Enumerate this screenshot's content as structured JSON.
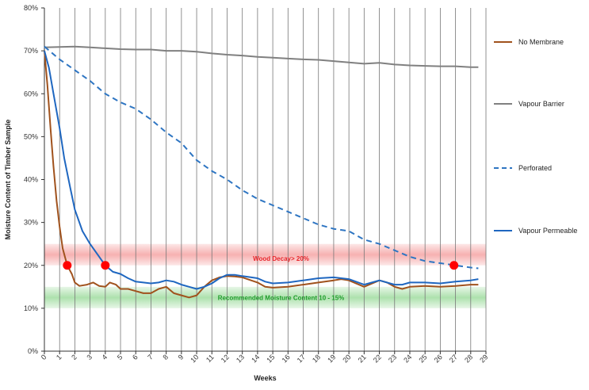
{
  "chart_data": {
    "type": "line",
    "xlabel": "Weeks",
    "ylabel": "Moisture Content of Timber Sample",
    "xlim": [
      0,
      29
    ],
    "ylim": [
      0,
      80
    ],
    "x_ticks": [
      "0",
      "1",
      "2",
      "3",
      "4",
      "5",
      "6",
      "7",
      "8",
      "9",
      "10",
      "11",
      "12",
      "13",
      "14",
      "15",
      "16",
      "17",
      "18",
      "19",
      "20",
      "21",
      "22",
      "23",
      "24",
      "25",
      "26",
      "27",
      "28",
      "29"
    ],
    "y_ticks": [
      "0%",
      "10%",
      "20%",
      "30%",
      "40%",
      "50%",
      "60%",
      "70%",
      "80%"
    ],
    "y_tick_values": [
      0,
      10,
      20,
      30,
      40,
      50,
      60,
      70,
      80
    ],
    "grid": "vertical",
    "legend_position": "right",
    "bands": [
      {
        "label": "Wood Decay> 20%",
        "from": 20,
        "to": 25,
        "color": "#f5a3a3",
        "text_color": "#e8252b"
      },
      {
        "label": "Recommended Moisture Content 10 - 15%",
        "from": 10,
        "to": 15,
        "color": "#9fdc9f",
        "text_color": "#1f9d2b"
      }
    ],
    "markers": [
      {
        "x": 1.5,
        "y": 20,
        "color": "#ff0000"
      },
      {
        "x": 4.0,
        "y": 20,
        "color": "#ff0000"
      },
      {
        "x": 26.9,
        "y": 20,
        "color": "#ff0000"
      }
    ],
    "series": [
      {
        "name": "No Membrane",
        "color": "#a0521d",
        "dash": "solid",
        "x": [
          0,
          0.2,
          0.4,
          0.6,
          0.8,
          1.0,
          1.2,
          1.5,
          1.8,
          2.0,
          2.3,
          2.8,
          3.2,
          3.6,
          4.0,
          4.3,
          4.7,
          5.0,
          5.5,
          6.0,
          6.5,
          7.0,
          7.5,
          8.0,
          8.5,
          9.0,
          9.5,
          10.0,
          10.5,
          11.0,
          11.5,
          12.0,
          12.5,
          13.0,
          14.0,
          14.5,
          15.0,
          16.0,
          17.0,
          18.0,
          19.0,
          19.5,
          20.0,
          21.0,
          22.0,
          22.5,
          23.0,
          23.5,
          24.0,
          25.0,
          26.0,
          27.0,
          28.0,
          28.5
        ],
        "y": [
          70,
          62,
          52,
          43,
          35,
          29,
          24,
          20,
          18,
          16,
          15.2,
          15.5,
          16.0,
          15.2,
          15.0,
          16.0,
          15.5,
          14.5,
          14.5,
          14.0,
          13.5,
          13.5,
          14.5,
          15.0,
          13.5,
          13.0,
          12.5,
          13.0,
          15.0,
          16.5,
          17.2,
          17.5,
          17.4,
          17.2,
          16.0,
          15.0,
          14.8,
          15.0,
          15.5,
          16.0,
          16.5,
          16.8,
          16.5,
          15.0,
          16.5,
          16.0,
          15.0,
          14.5,
          15.0,
          15.2,
          15.0,
          15.2,
          15.5,
          15.5
        ]
      },
      {
        "name": "Vapour Barrier",
        "color": "#808080",
        "dash": "solid",
        "x": [
          0,
          1,
          2,
          3,
          4,
          5,
          6,
          7,
          8,
          9,
          10,
          11,
          12,
          13,
          14,
          15,
          16,
          17,
          18,
          19,
          20,
          21,
          22,
          23,
          24,
          25,
          26,
          27,
          28,
          28.5
        ],
        "y": [
          70.8,
          70.9,
          71.0,
          70.8,
          70.6,
          70.4,
          70.3,
          70.3,
          70.0,
          70.0,
          69.8,
          69.4,
          69.1,
          68.9,
          68.6,
          68.4,
          68.2,
          68.0,
          67.9,
          67.6,
          67.3,
          67.0,
          67.2,
          66.8,
          66.6,
          66.5,
          66.4,
          66.4,
          66.2,
          66.2
        ]
      },
      {
        "name": "Perforated",
        "color": "#2e75c2",
        "dash": "dashed",
        "x": [
          0,
          1,
          2,
          3,
          4,
          5,
          6,
          7,
          8,
          9,
          10,
          11,
          12,
          13,
          14,
          15,
          16,
          17,
          18,
          19,
          20,
          21,
          22,
          23,
          24,
          25,
          26,
          27,
          28,
          28.5
        ],
        "y": [
          71,
          68,
          65.5,
          63,
          60,
          58,
          56.5,
          54,
          51,
          48.5,
          44.5,
          42,
          40,
          37.5,
          35.5,
          34,
          32.5,
          31,
          29.5,
          28.5,
          28,
          26,
          25,
          23.5,
          22,
          21,
          20.5,
          20,
          19.5,
          19.3
        ]
      },
      {
        "name": "Vapour Permeable",
        "color": "#1f67c0",
        "dash": "solid",
        "x": [
          0,
          0.3,
          0.6,
          1.0,
          1.3,
          1.7,
          2.0,
          2.5,
          3.0,
          3.5,
          4.0,
          4.5,
          5.0,
          5.5,
          6.0,
          6.5,
          7.0,
          7.5,
          8.0,
          8.5,
          9.0,
          9.5,
          10.0,
          10.5,
          11.0,
          11.5,
          12.0,
          12.5,
          13.0,
          14.0,
          14.5,
          15.0,
          16.0,
          17.0,
          18.0,
          19.0,
          19.5,
          20.0,
          21.0,
          22.0,
          23.0,
          23.5,
          24.0,
          25.0,
          26.0,
          27.0,
          28.0,
          28.5
        ],
        "y": [
          70,
          66,
          60,
          52,
          45,
          38,
          33,
          28,
          25,
          22.5,
          20,
          18.5,
          18,
          17,
          16.2,
          16.0,
          15.8,
          16.0,
          16.5,
          16.2,
          15.5,
          15.0,
          14.5,
          15.0,
          15.8,
          17.0,
          17.8,
          17.8,
          17.5,
          17.0,
          16.2,
          15.8,
          16.0,
          16.5,
          17.0,
          17.2,
          17.0,
          16.8,
          15.5,
          16.5,
          15.5,
          15.5,
          16.0,
          16.0,
          15.8,
          16.2,
          16.5,
          16.8
        ]
      }
    ]
  }
}
